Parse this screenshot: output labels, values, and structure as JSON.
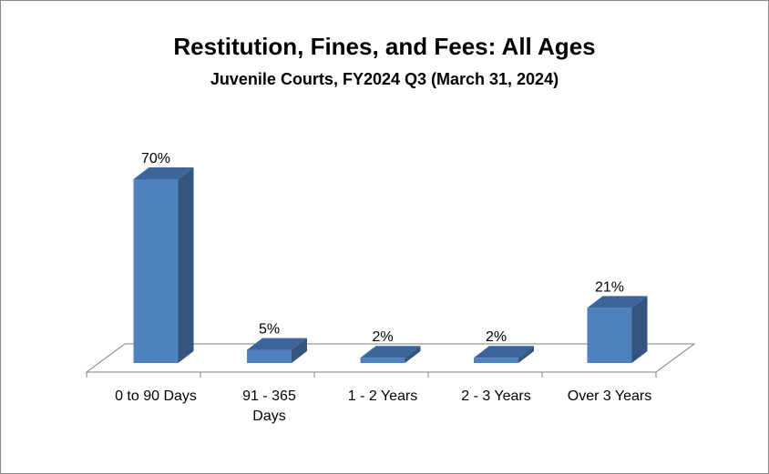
{
  "chart_data": {
    "type": "bar",
    "title": "Restitution, Fines, and Fees: All Ages",
    "subtitle": "Juvenile Courts, FY2024 Q3 (March 31, 2024)",
    "categories": [
      "0 to 90 Days",
      "91 - 365\nDays",
      "1 - 2 Years",
      "2 - 3 Years",
      "Over 3 Years"
    ],
    "values": [
      70,
      5,
      2,
      2,
      21
    ],
    "data_labels": [
      "70%",
      "5%",
      "2%",
      "2%",
      "21%"
    ],
    "ylim": [
      0,
      70
    ],
    "style": "3d-column",
    "grid": false,
    "legend": "none",
    "colors": {
      "bar_front": "#4F81BD",
      "bar_side": "#34557E",
      "bar_top": "#3D6599",
      "axis": "#7F7F7F"
    }
  }
}
